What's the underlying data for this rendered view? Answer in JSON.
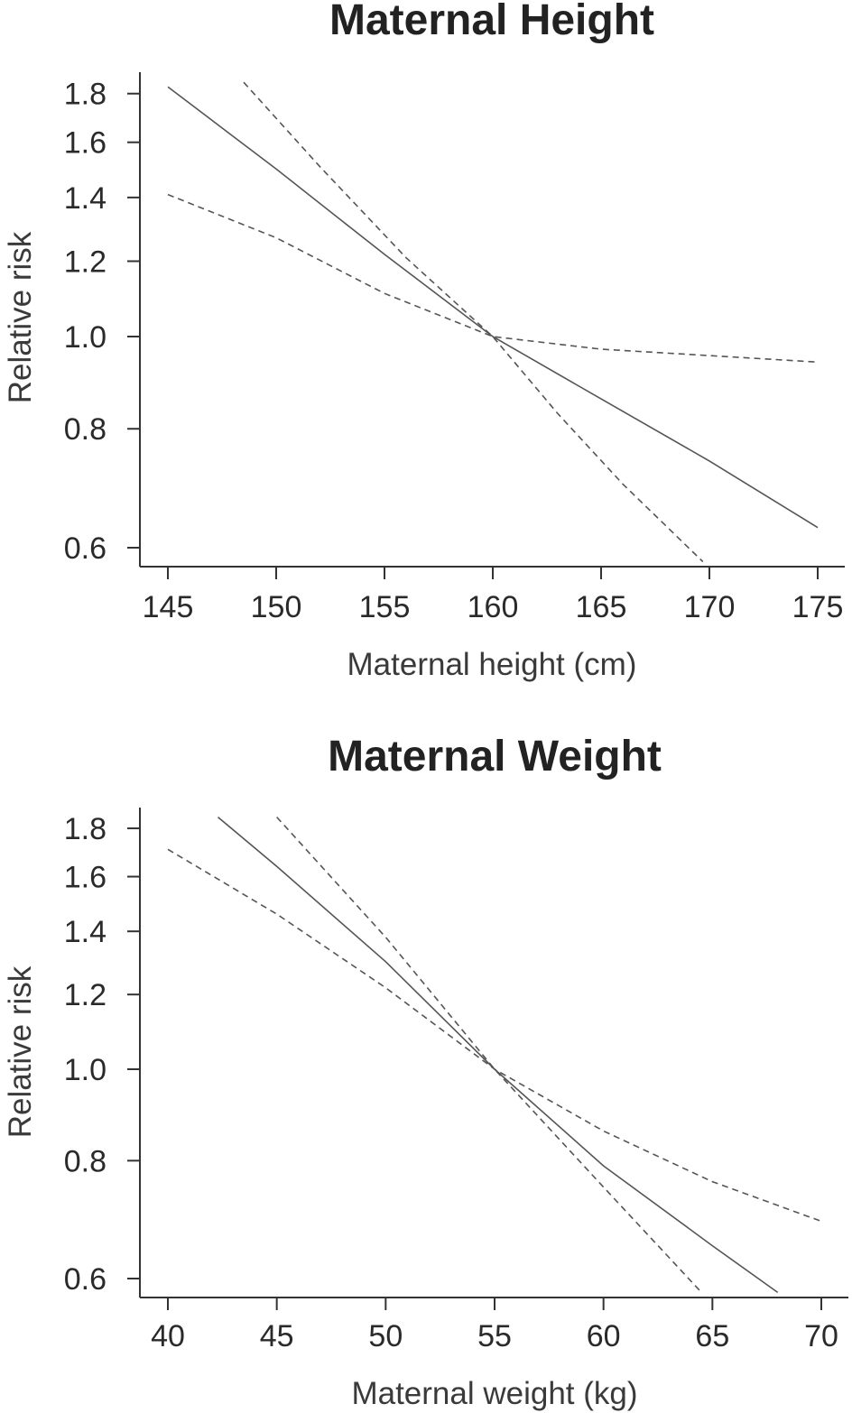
{
  "chart_data": [
    {
      "type": "line",
      "title": "Maternal Height",
      "xlabel": "Maternal height (cm)",
      "ylabel": "Relative risk",
      "y_scale": "log",
      "xlim": [
        145,
        175
      ],
      "ylim": [
        0.58,
        1.85
      ],
      "x_ticks": [
        "145",
        "150",
        "155",
        "160",
        "165",
        "170",
        "175"
      ],
      "y_ticks": [
        "0.6",
        "0.8",
        "1.0",
        "1.2",
        "1.4",
        "1.6",
        "1.8"
      ],
      "grid": false,
      "legend": "none",
      "series": [
        {
          "style": "solid",
          "x": [
            145,
            150,
            155,
            160,
            165,
            170,
            175
          ],
          "y": [
            1.83,
            1.5,
            1.22,
            1.0,
            0.86,
            0.74,
            0.63
          ]
        },
        {
          "style": "dashed",
          "x": [
            148.5,
            152,
            156,
            160,
            163,
            166,
            169.7
          ],
          "y": [
            1.85,
            1.51,
            1.21,
            1.0,
            0.83,
            0.7,
            0.58
          ]
        },
        {
          "style": "dashed",
          "x": [
            145,
            150,
            155,
            160,
            165,
            170,
            175
          ],
          "y": [
            1.41,
            1.27,
            1.11,
            1.0,
            0.97,
            0.955,
            0.94
          ]
        }
      ]
    },
    {
      "type": "line",
      "title": "Maternal Weight",
      "xlabel": "Maternal weight (kg)",
      "ylabel": "Relative risk",
      "y_scale": "log",
      "xlim": [
        40,
        70
      ],
      "ylim": [
        0.58,
        1.85
      ],
      "x_ticks": [
        "40",
        "45",
        "50",
        "55",
        "60",
        "65",
        "70"
      ],
      "y_ticks": [
        "0.6",
        "0.8",
        "1.0",
        "1.2",
        "1.4",
        "1.6",
        "1.8"
      ],
      "grid": false,
      "legend": "none",
      "series": [
        {
          "style": "solid",
          "x": [
            42.3,
            45,
            50,
            55,
            60,
            65,
            68
          ],
          "y": [
            1.85,
            1.64,
            1.3,
            1.0,
            0.79,
            0.65,
            0.58
          ]
        },
        {
          "style": "dashed",
          "x": [
            45,
            50,
            55,
            60,
            64.5
          ],
          "y": [
            1.85,
            1.38,
            1.0,
            0.75,
            0.58
          ]
        },
        {
          "style": "dashed",
          "x": [
            40,
            45,
            50,
            55,
            60,
            65,
            70
          ],
          "y": [
            1.71,
            1.46,
            1.22,
            1.0,
            0.86,
            0.76,
            0.69
          ]
        }
      ]
    }
  ]
}
